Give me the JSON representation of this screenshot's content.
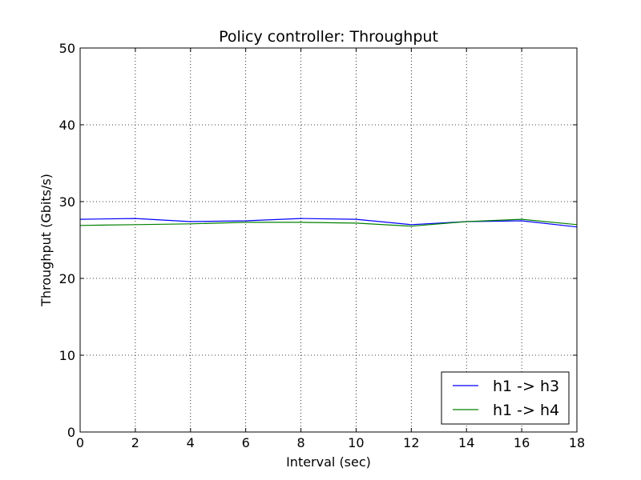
{
  "chart_data": {
    "type": "line",
    "title": "Policy controller: Throughput",
    "xlabel": "Interval (sec)",
    "ylabel": "Throughput (Gbits/s)",
    "xlim": [
      0,
      18
    ],
    "ylim": [
      0,
      50
    ],
    "xticks": [
      0,
      2,
      4,
      6,
      8,
      10,
      12,
      14,
      16,
      18
    ],
    "yticks": [
      0,
      10,
      20,
      30,
      40,
      50
    ],
    "grid": true,
    "legend_position": "bottom-right",
    "x": [
      0,
      2,
      4,
      6,
      8,
      10,
      12,
      14,
      16,
      18
    ],
    "series": [
      {
        "name": "h1 -> h3",
        "color": "#0000ff",
        "values": [
          27.7,
          27.8,
          27.4,
          27.5,
          27.8,
          27.7,
          27.0,
          27.4,
          27.5,
          26.7
        ]
      },
      {
        "name": "h1 -> h4",
        "color": "#008000",
        "values": [
          26.9,
          27.0,
          27.1,
          27.3,
          27.3,
          27.2,
          26.8,
          27.4,
          27.7,
          27.0
        ]
      }
    ]
  }
}
